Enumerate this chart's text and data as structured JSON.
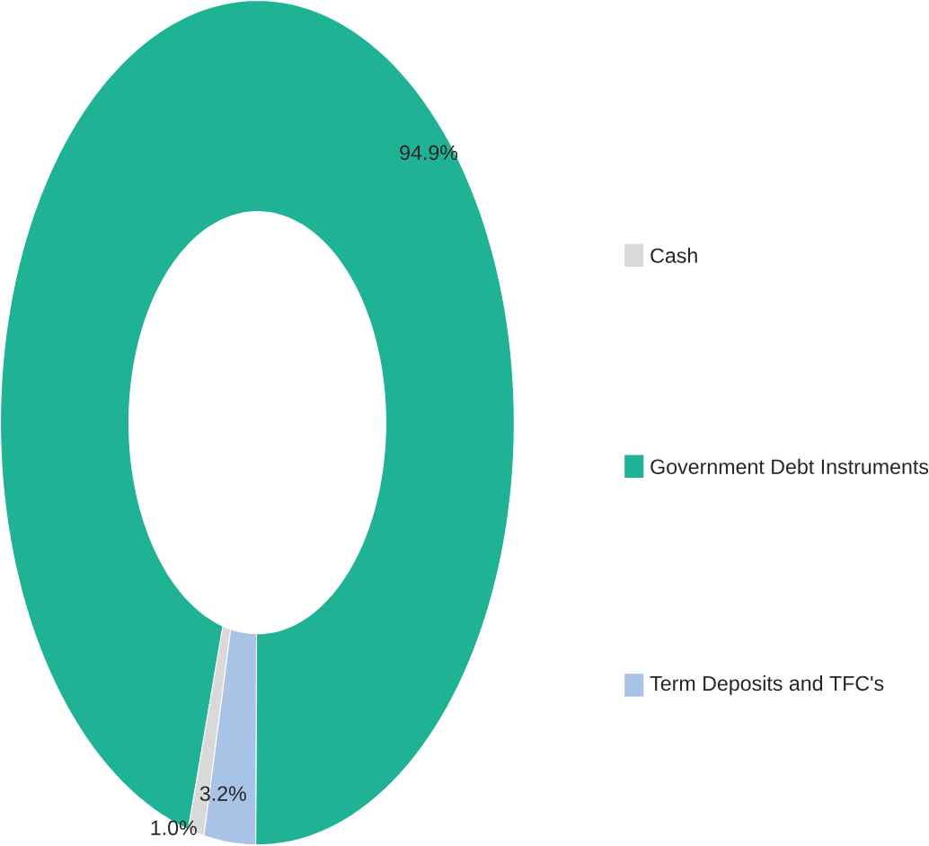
{
  "chart_data": {
    "type": "donut",
    "categories": [
      "Cash",
      "Government Debt Instruments",
      "Term Deposits and TFC's"
    ],
    "values": [
      1.0,
      94.9,
      3.2
    ],
    "colors": [
      "#d9d9d9",
      "#20b294",
      "#a9c3e6"
    ],
    "value_labels": [
      "1.0%",
      "94.9%",
      "3.2%"
    ],
    "legend": "right"
  }
}
